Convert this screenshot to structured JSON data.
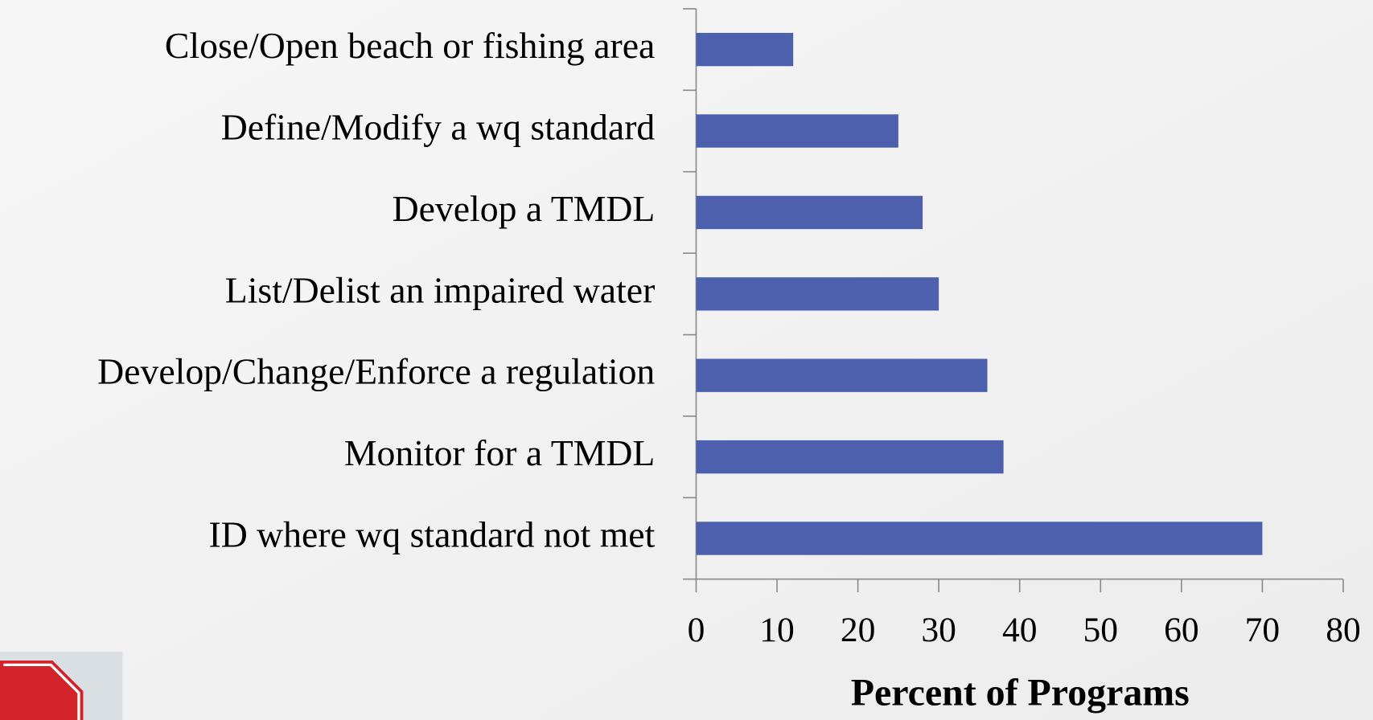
{
  "chart_data": {
    "type": "barh",
    "categories": [
      "Close/Open beach or fishing area",
      "Define/Modify a wq standard",
      "Develop a TMDL",
      "List/Delist an impaired water",
      "Develop/Change/Enforce a regulation",
      "Monitor for a TMDL",
      "ID where wq standard not met"
    ],
    "values": [
      12,
      25,
      28,
      30,
      36,
      38,
      70
    ],
    "color": "#4d60ae",
    "xlabel": "Percent of Programs",
    "xlim": [
      0,
      80
    ],
    "xticks": [
      0,
      10,
      20,
      30,
      40,
      50,
      60,
      70,
      80
    ],
    "grid": false
  }
}
